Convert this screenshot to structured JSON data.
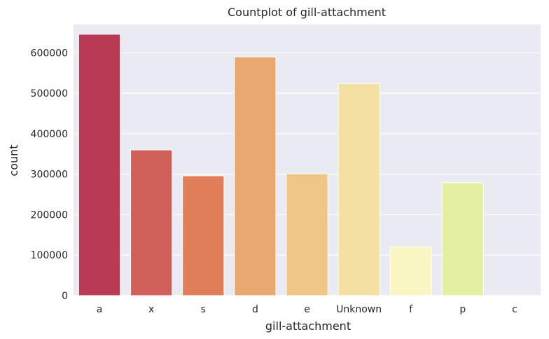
{
  "chart_data": {
    "type": "bar",
    "title": "Countplot of gill-attachment",
    "xlabel": "gill-attachment",
    "ylabel": "count",
    "categories": [
      "a",
      "x",
      "s",
      "d",
      "e",
      "Unknown",
      "f",
      "p",
      "c"
    ],
    "values": [
      646000,
      360000,
      296000,
      590000,
      301000,
      524000,
      121000,
      279000,
      0
    ],
    "colors": [
      "#b83a54",
      "#d1605a",
      "#e17e5a",
      "#e9a86f",
      "#efc686",
      "#f4e0a2",
      "#f9f6c4",
      "#e5efa4",
      "#c8e5a0"
    ],
    "ylim": [
      0,
      670000
    ],
    "yticks": [
      0,
      100000,
      200000,
      300000,
      400000,
      500000,
      600000
    ],
    "ytick_labels": [
      "0",
      "100000",
      "200000",
      "300000",
      "400000",
      "500000",
      "600000"
    ],
    "grid": true,
    "background": "#eaeaf2"
  }
}
